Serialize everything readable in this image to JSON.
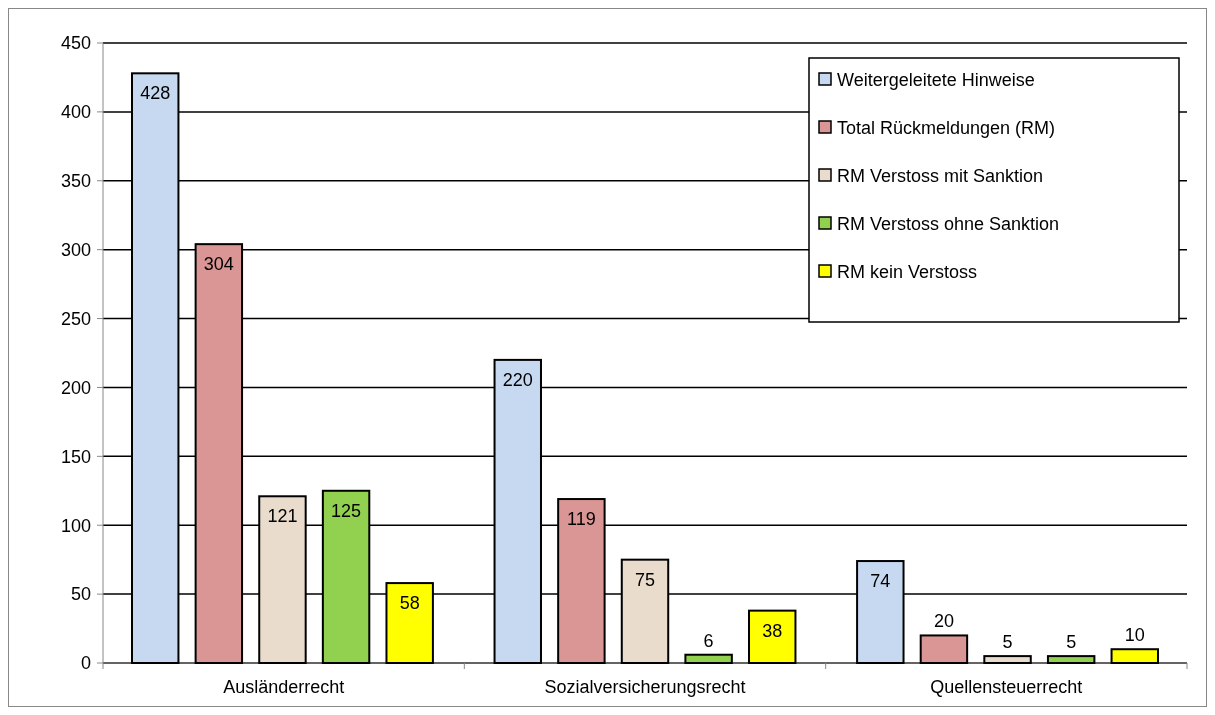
{
  "chart_data": {
    "type": "bar",
    "categories": [
      "Ausländerrecht",
      "Sozialversicherungsrecht",
      "Quellensteuerrecht"
    ],
    "series": [
      {
        "name": "Weitergeleitete Hinweise",
        "color": "#c6d9f1",
        "values": [
          428,
          220,
          74
        ]
      },
      {
        "name": "Total Rückmeldungen (RM)",
        "color": "#d99694",
        "values": [
          304,
          119,
          20
        ]
      },
      {
        "name": "RM Verstoss mit Sanktion",
        "color": "#eadccc",
        "values": [
          121,
          75,
          5
        ]
      },
      {
        "name": "RM Verstoss ohne Sanktion",
        "color": "#92d050",
        "values": [
          125,
          6,
          5
        ]
      },
      {
        "name": "RM kein Verstoss",
        "color": "#ffff00",
        "values": [
          58,
          38,
          10
        ]
      }
    ],
    "ylim": [
      0,
      450
    ],
    "yticks": [
      0,
      50,
      100,
      150,
      200,
      250,
      300,
      350,
      400,
      450
    ],
    "grid": "y",
    "legend": "top right",
    "data_labels": true
  }
}
